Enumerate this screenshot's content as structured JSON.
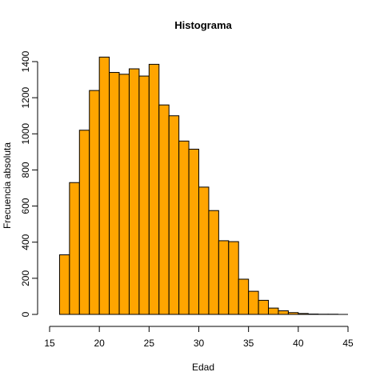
{
  "chart_data": {
    "type": "bar",
    "title": "Histograma",
    "xlabel": "Edad",
    "ylabel": "Frecuencia absoluta",
    "xlim": [
      15,
      45
    ],
    "ylim": [
      0,
      1400
    ],
    "x_ticks": [
      15,
      20,
      25,
      30,
      35,
      40,
      45
    ],
    "y_ticks": [
      0,
      200,
      400,
      600,
      800,
      1000,
      1200,
      1400
    ],
    "bar_color": "#FFA500",
    "bins": [
      {
        "start": 16,
        "end": 17,
        "value": 330
      },
      {
        "start": 17,
        "end": 18,
        "value": 730
      },
      {
        "start": 18,
        "end": 19,
        "value": 1020
      },
      {
        "start": 19,
        "end": 20,
        "value": 1240
      },
      {
        "start": 20,
        "end": 21,
        "value": 1425
      },
      {
        "start": 21,
        "end": 22,
        "value": 1340
      },
      {
        "start": 22,
        "end": 23,
        "value": 1330
      },
      {
        "start": 23,
        "end": 24,
        "value": 1360
      },
      {
        "start": 24,
        "end": 25,
        "value": 1320
      },
      {
        "start": 25,
        "end": 26,
        "value": 1385
      },
      {
        "start": 26,
        "end": 27,
        "value": 1160
      },
      {
        "start": 27,
        "end": 28,
        "value": 1100
      },
      {
        "start": 28,
        "end": 29,
        "value": 960
      },
      {
        "start": 29,
        "end": 30,
        "value": 915
      },
      {
        "start": 30,
        "end": 31,
        "value": 705
      },
      {
        "start": 31,
        "end": 32,
        "value": 575
      },
      {
        "start": 32,
        "end": 33,
        "value": 408
      },
      {
        "start": 33,
        "end": 34,
        "value": 403
      },
      {
        "start": 34,
        "end": 35,
        "value": 195
      },
      {
        "start": 35,
        "end": 36,
        "value": 128
      },
      {
        "start": 36,
        "end": 37,
        "value": 78
      },
      {
        "start": 37,
        "end": 38,
        "value": 35
      },
      {
        "start": 38,
        "end": 39,
        "value": 20
      },
      {
        "start": 39,
        "end": 40,
        "value": 10
      },
      {
        "start": 40,
        "end": 41,
        "value": 5
      },
      {
        "start": 41,
        "end": 42,
        "value": 2
      },
      {
        "start": 42,
        "end": 43,
        "value": 1
      },
      {
        "start": 43,
        "end": 44,
        "value": 1
      },
      {
        "start": 44,
        "end": 45,
        "value": 0
      }
    ]
  }
}
